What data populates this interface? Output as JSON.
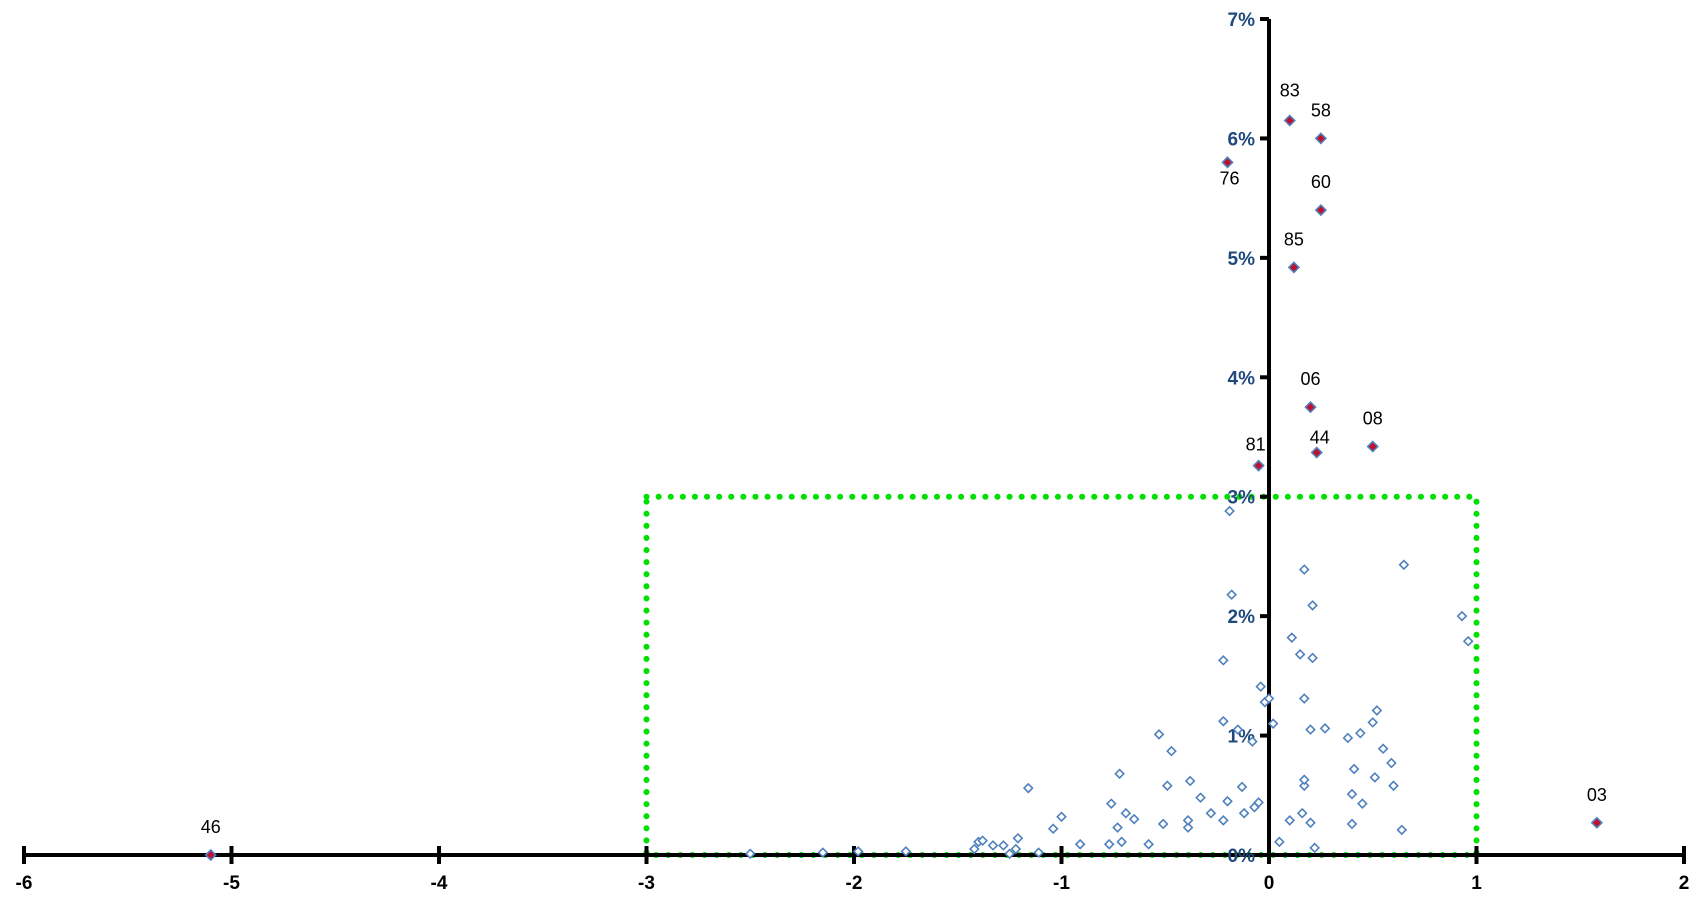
{
  "colors": {
    "axis": "#000000",
    "y_tick_label": "#1F497D",
    "hollow_point": "#4F81BD",
    "highlight_fill": "#C0102E",
    "highlight_stroke": "#4F81BD",
    "highlight_box": "#00E000"
  },
  "chart_data": {
    "type": "scatter",
    "title": "",
    "xlabel": "",
    "ylabel": "",
    "xlim": [
      -6,
      2
    ],
    "ylim": [
      0,
      0.07
    ],
    "y_format": "percent",
    "grid": false,
    "legend": "none",
    "x_ticks": [
      {
        "value": -6,
        "label": "-6"
      },
      {
        "value": -5,
        "label": "-5"
      },
      {
        "value": -4,
        "label": "-4"
      },
      {
        "value": -3,
        "label": "-3"
      },
      {
        "value": -2,
        "label": "-2"
      },
      {
        "value": -1,
        "label": "-1"
      },
      {
        "value": 0,
        "label": "0"
      },
      {
        "value": 1,
        "label": "1"
      },
      {
        "value": 2,
        "label": "2"
      }
    ],
    "y_ticks": [
      {
        "value": 0,
        "label": "0%"
      },
      {
        "value": 0.01,
        "label": "1%"
      },
      {
        "value": 0.02,
        "label": "2%"
      },
      {
        "value": 0.03,
        "label": "3%"
      },
      {
        "value": 0.04,
        "label": "4%"
      },
      {
        "value": 0.05,
        "label": "5%"
      },
      {
        "value": 0.06,
        "label": "6%"
      },
      {
        "value": 0.07,
        "label": "7%"
      }
    ],
    "highlight_box": {
      "x": [
        -3,
        1
      ],
      "y": [
        0,
        0.03
      ]
    },
    "labeled_points": [
      {
        "label": "83",
        "x": 0.1,
        "y": 0.0615
      },
      {
        "label": "58",
        "x": 0.25,
        "y": 0.06
      },
      {
        "label": "76",
        "x": -0.2,
        "y": 0.058
      },
      {
        "label": "60",
        "x": 0.25,
        "y": 0.054
      },
      {
        "label": "85",
        "x": 0.12,
        "y": 0.0492
      },
      {
        "label": "06",
        "x": 0.2,
        "y": 0.0375
      },
      {
        "label": "08",
        "x": 0.5,
        "y": 0.0342
      },
      {
        "label": "44",
        "x": 0.23,
        "y": 0.0337
      },
      {
        "label": "81",
        "x": -0.05,
        "y": 0.0326
      },
      {
        "label": "03",
        "x": 1.58,
        "y": 0.0027
      },
      {
        "label": "46",
        "x": -5.1,
        "y": 0.0
      }
    ],
    "points": [
      [
        -2.5,
        0.0001
      ],
      [
        -2.15,
        0.0002
      ],
      [
        -1.98,
        0.0003
      ],
      [
        -1.75,
        0.0003
      ],
      [
        -1.42,
        0.0005
      ],
      [
        -1.4,
        0.0011
      ],
      [
        -1.38,
        0.0012
      ],
      [
        -1.33,
        0.0008
      ],
      [
        -1.28,
        0.0008
      ],
      [
        -1.25,
        0.0001
      ],
      [
        -1.22,
        0.0005
      ],
      [
        -1.21,
        0.0014
      ],
      [
        -1.16,
        0.0056
      ],
      [
        -1.11,
        0.0002
      ],
      [
        -1.04,
        0.0022
      ],
      [
        -1.0,
        0.0032
      ],
      [
        -0.91,
        0.0009
      ],
      [
        -0.77,
        0.0009
      ],
      [
        -0.76,
        0.0043
      ],
      [
        -0.73,
        0.0023
      ],
      [
        -0.72,
        0.0068
      ],
      [
        -0.71,
        0.0011
      ],
      [
        -0.69,
        0.0035
      ],
      [
        -0.65,
        0.003
      ],
      [
        -0.58,
        0.0009
      ],
      [
        -0.53,
        0.0101
      ],
      [
        -0.51,
        0.0026
      ],
      [
        -0.49,
        0.0058
      ],
      [
        -0.47,
        0.0087
      ],
      [
        -0.39,
        0.0023
      ],
      [
        -0.39,
        0.0029
      ],
      [
        -0.38,
        0.0062
      ],
      [
        -0.33,
        0.0048
      ],
      [
        -0.28,
        0.0035
      ],
      [
        -0.22,
        0.0029
      ],
      [
        -0.22,
        0.0112
      ],
      [
        -0.22,
        0.0163
      ],
      [
        -0.2,
        0.0045
      ],
      [
        -0.19,
        0.0288
      ],
      [
        -0.18,
        0.0218
      ],
      [
        -0.15,
        0.0105
      ],
      [
        -0.13,
        0.0057
      ],
      [
        -0.12,
        0.0035
      ],
      [
        -0.08,
        0.0095
      ],
      [
        -0.07,
        0.004
      ],
      [
        -0.05,
        0.0044
      ],
      [
        -0.04,
        0.0141
      ],
      [
        -0.02,
        0.0128
      ],
      [
        0.0,
        0.0131
      ],
      [
        0.02,
        0.011
      ],
      [
        0.05,
        0.0011
      ],
      [
        0.1,
        0.0029
      ],
      [
        0.11,
        0.0182
      ],
      [
        0.15,
        0.0168
      ],
      [
        0.16,
        0.0035
      ],
      [
        0.17,
        0.0058
      ],
      [
        0.17,
        0.0063
      ],
      [
        0.17,
        0.0131
      ],
      [
        0.17,
        0.0239
      ],
      [
        0.2,
        0.0027
      ],
      [
        0.2,
        0.0105
      ],
      [
        0.21,
        0.0165
      ],
      [
        0.21,
        0.0209
      ],
      [
        0.22,
        0.0006
      ],
      [
        0.27,
        0.0106
      ],
      [
        0.38,
        0.0098
      ],
      [
        0.4,
        0.0026
      ],
      [
        0.4,
        0.0051
      ],
      [
        0.41,
        0.0072
      ],
      [
        0.44,
        0.0102
      ],
      [
        0.45,
        0.0043
      ],
      [
        0.5,
        0.0111
      ],
      [
        0.51,
        0.0065
      ],
      [
        0.52,
        0.0121
      ],
      [
        0.55,
        0.0089
      ],
      [
        0.59,
        0.0077
      ],
      [
        0.6,
        0.0058
      ],
      [
        0.64,
        0.0021
      ],
      [
        0.65,
        0.0243
      ],
      [
        0.93,
        0.02
      ],
      [
        0.96,
        0.0179
      ]
    ]
  }
}
